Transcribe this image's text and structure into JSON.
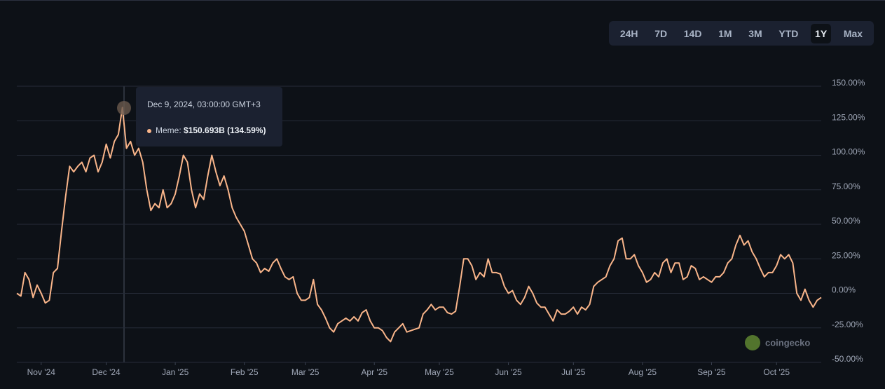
{
  "range_buttons": [
    "24H",
    "7D",
    "14D",
    "1M",
    "3M",
    "YTD",
    "1Y",
    "Max"
  ],
  "active_range": "1Y",
  "watermark": "coingecko",
  "tooltip": {
    "title": "Dec 9, 2024, 03:00:00 GMT+3",
    "series_label": "Meme:",
    "value_text": "$150.693B (134.59%)"
  },
  "chart_data": {
    "type": "line",
    "color": "#f9b58a",
    "grid": true,
    "values": [
      0,
      -2,
      15,
      10,
      -3,
      6,
      0,
      -7,
      -5,
      15,
      18,
      45,
      70,
      92,
      88,
      92,
      95,
      88,
      98,
      100,
      88,
      95,
      108,
      98,
      110,
      115,
      134.59,
      105,
      110,
      100,
      105,
      95,
      75,
      60,
      65,
      62,
      75,
      62,
      65,
      72,
      85,
      100,
      95,
      75,
      62,
      72,
      68,
      85,
      100,
      88,
      78,
      85,
      75,
      62,
      55,
      50,
      45,
      35,
      25,
      22,
      15,
      18,
      16,
      22,
      25,
      18,
      12,
      10,
      12,
      0,
      -5,
      -5,
      -3,
      10,
      -8,
      -12,
      -18,
      -25,
      -28,
      -22,
      -20,
      -18,
      -20,
      -17,
      -20,
      -14,
      -12,
      -20,
      -25,
      -25,
      -27,
      -32,
      -35,
      -28,
      -25,
      -22,
      -28,
      -27,
      -26,
      -25,
      -15,
      -12,
      -8,
      -12,
      -10,
      -10,
      -14,
      -15,
      -13,
      5,
      25,
      25,
      20,
      10,
      15,
      12,
      25,
      15,
      15,
      14,
      5,
      0,
      2,
      -5,
      -8,
      -3,
      5,
      0,
      -7,
      -10,
      -10,
      -15,
      -20,
      -12,
      -15,
      -15,
      -13,
      -10,
      -15,
      -10,
      -12,
      -8,
      5,
      8,
      10,
      12,
      20,
      25,
      38,
      40,
      25,
      25,
      28,
      20,
      15,
      8,
      10,
      15,
      12,
      22,
      25,
      15,
      22,
      22,
      10,
      12,
      20,
      18,
      10,
      12,
      10,
      8,
      12,
      12,
      15,
      22,
      25,
      35,
      42,
      35,
      38,
      30,
      25,
      18,
      12,
      15,
      15,
      20,
      28,
      25,
      28,
      22,
      0,
      -5,
      3,
      -5,
      -10,
      -5,
      -3
    ],
    "xlim": [
      0,
      198
    ],
    "xticks": [
      {
        "value": 6,
        "label": "Nov '24"
      },
      {
        "value": 22,
        "label": "Dec '24"
      },
      {
        "value": 39,
        "label": "Jan '25"
      },
      {
        "value": 56,
        "label": "Feb '25"
      },
      {
        "value": 71,
        "label": "Mar '25"
      },
      {
        "value": 88,
        "label": "Apr '25"
      },
      {
        "value": 104,
        "label": "May '25"
      },
      {
        "value": 121,
        "label": "Jun '25"
      },
      {
        "value": 137,
        "label": "Jul '25"
      },
      {
        "value": 154,
        "label": "Aug '25"
      },
      {
        "value": 171,
        "label": "Sep '25"
      },
      {
        "value": 187,
        "label": "Oct '25"
      }
    ],
    "ylim": [
      -50,
      150
    ],
    "yticks": [
      {
        "value": 150,
        "label": "150.00%"
      },
      {
        "value": 125,
        "label": "125.00%"
      },
      {
        "value": 100,
        "label": "100.00%"
      },
      {
        "value": 75,
        "label": "75.00%"
      },
      {
        "value": 50,
        "label": "50.00%"
      },
      {
        "value": 25,
        "label": "25.00%"
      },
      {
        "value": 0,
        "label": "0.00%"
      },
      {
        "value": -25,
        "label": "-25.00%"
      },
      {
        "value": -50,
        "label": "-50.00%"
      }
    ]
  }
}
